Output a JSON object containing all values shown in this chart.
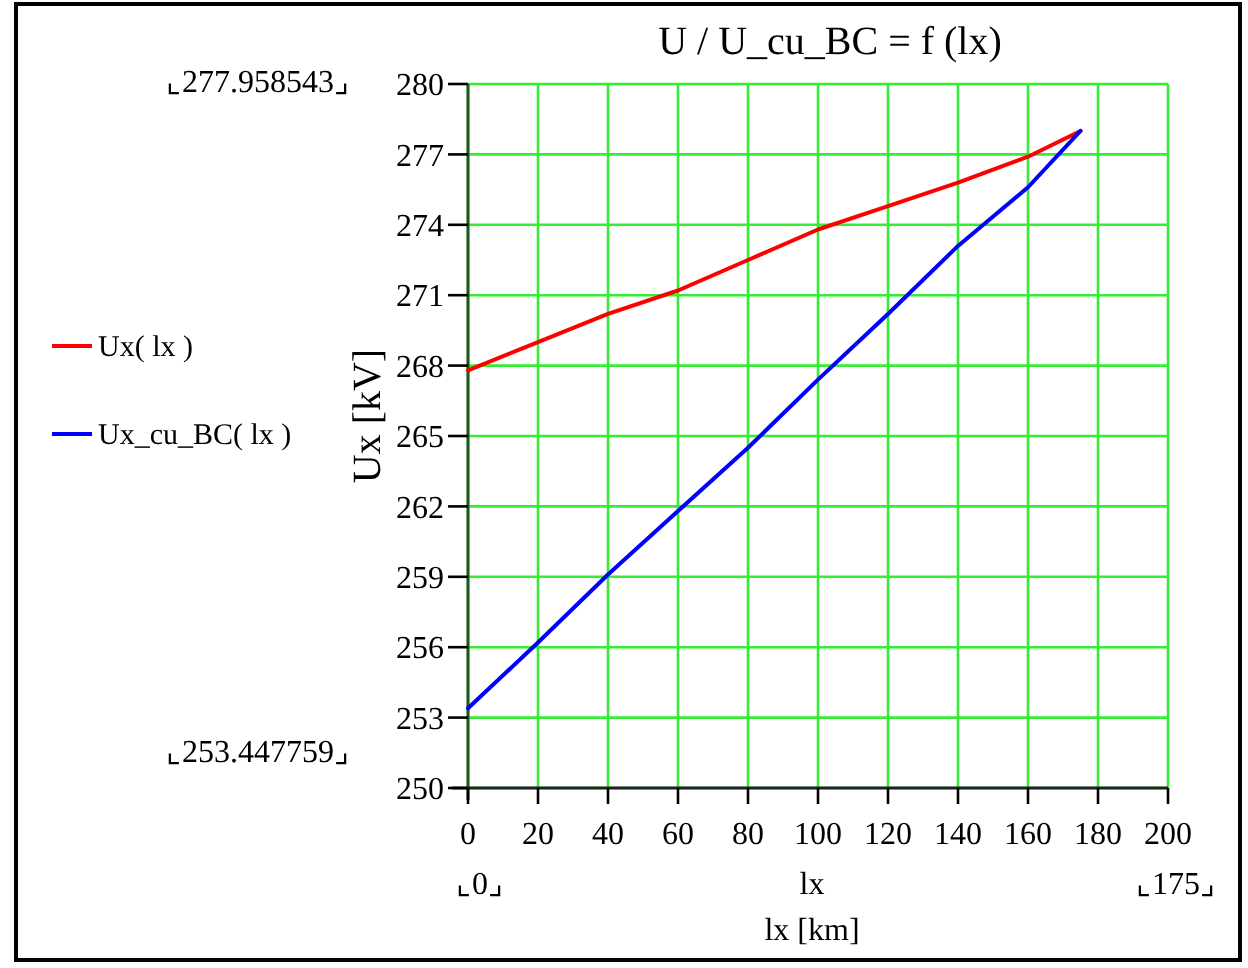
{
  "chart_data": {
    "type": "line",
    "title": "U / U_cu_BC = f (lx)",
    "xlabel": "lx",
    "ylabel": "Ux [kV]",
    "annotations": [
      "⌞277.958543⌟",
      "⌞253.447759⌟",
      "⌞0⌟",
      "⌞175⌟",
      "lx [km]"
    ],
    "xlim": [
      0,
      200
    ],
    "xticks": [
      0,
      20,
      40,
      60,
      80,
      100,
      120,
      140,
      160,
      180,
      200
    ],
    "ylim": [
      250,
      280
    ],
    "yticks": [
      250,
      253,
      256,
      259,
      262,
      265,
      268,
      271,
      274,
      277,
      280
    ],
    "grid": true,
    "legend": "left",
    "marker": "none",
    "line_style": "solid",
    "series": [
      {
        "name": "Ux( lx )",
        "color": "#ff0000",
        "x": [
          0,
          20,
          40,
          60,
          80,
          100,
          120,
          140,
          160,
          175
        ],
        "values": [
          267.8,
          269.0,
          270.2,
          271.2,
          272.5,
          273.8,
          274.8,
          275.8,
          276.9,
          278.0
        ]
      },
      {
        "name": "Ux_cu_BC( lx )",
        "color": "#0000ff",
        "x": [
          0,
          20,
          40,
          60,
          80,
          100,
          120,
          140,
          160,
          175
        ],
        "values": [
          253.4,
          256.2,
          259.1,
          261.8,
          264.5,
          267.4,
          270.2,
          273.1,
          275.6,
          278.0
        ]
      }
    ]
  }
}
